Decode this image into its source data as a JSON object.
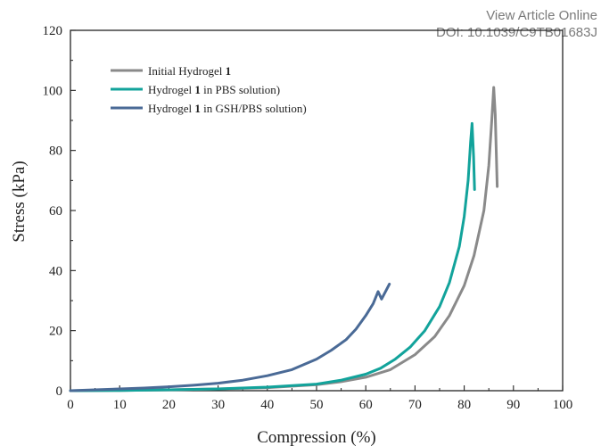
{
  "watermark": {
    "link_label": "View Article Online",
    "doi": "DOI: 10.1039/C9TB01683J"
  },
  "chart_data": {
    "type": "line",
    "xlabel": "Compression (%)",
    "ylabel": "Stress (kPa)",
    "xlim": [
      0,
      100
    ],
    "ylim": [
      0,
      120
    ],
    "xticks": [
      0,
      10,
      20,
      30,
      40,
      50,
      60,
      70,
      80,
      90,
      100
    ],
    "yticks": [
      0,
      20,
      40,
      60,
      80,
      100,
      120
    ],
    "grid": false,
    "legend_position": "top-left",
    "series": [
      {
        "name": "Initial Hydrogel 1",
        "name_parts": [
          "Initial Hydrogel ",
          "1",
          ""
        ],
        "color": "#8a8a8a",
        "x": [
          0,
          10,
          20,
          30,
          40,
          50,
          55,
          60,
          65,
          70,
          74,
          77,
          80,
          82,
          84,
          85,
          85.6,
          86.0,
          86.3,
          86.5,
          86.7
        ],
        "y": [
          0,
          0.1,
          0.3,
          0.6,
          1.0,
          2.0,
          3.0,
          4.5,
          7.0,
          12.0,
          18.0,
          25.0,
          35.0,
          45.0,
          60.0,
          75.0,
          90.0,
          101.0,
          92.0,
          80.0,
          68.0
        ]
      },
      {
        "name": "Hydrogel 1 in PBS solution)",
        "name_parts": [
          "Hydrogel ",
          "1",
          " in PBS solution)"
        ],
        "color": "#12a39b",
        "x": [
          0,
          10,
          20,
          30,
          40,
          50,
          55,
          60,
          63,
          66,
          69,
          72,
          75,
          77,
          79,
          80,
          80.8,
          81.3,
          81.6,
          81.9,
          82.1
        ],
        "y": [
          0,
          0.1,
          0.3,
          0.6,
          1.2,
          2.2,
          3.5,
          5.5,
          7.5,
          10.5,
          14.5,
          20.0,
          28.0,
          36.0,
          48.0,
          58.0,
          70.0,
          83.0,
          89.0,
          78.0,
          67.0
        ]
      },
      {
        "name": "Hydrogel 1 in GSH/PBS solution)",
        "name_parts": [
          "Hydrogel ",
          "1",
          " in GSH/PBS solution)"
        ],
        "color": "#4a6a96",
        "x": [
          0,
          5,
          10,
          15,
          20,
          25,
          30,
          35,
          40,
          45,
          50,
          53,
          56,
          58,
          60,
          61.5,
          62.5,
          63.2,
          64.0,
          64.8
        ],
        "y": [
          0,
          0.3,
          0.6,
          0.9,
          1.3,
          1.8,
          2.5,
          3.5,
          5.0,
          7.0,
          10.5,
          13.5,
          17.0,
          20.5,
          25.0,
          29.0,
          33.0,
          30.5,
          33.0,
          35.5
        ]
      }
    ]
  }
}
